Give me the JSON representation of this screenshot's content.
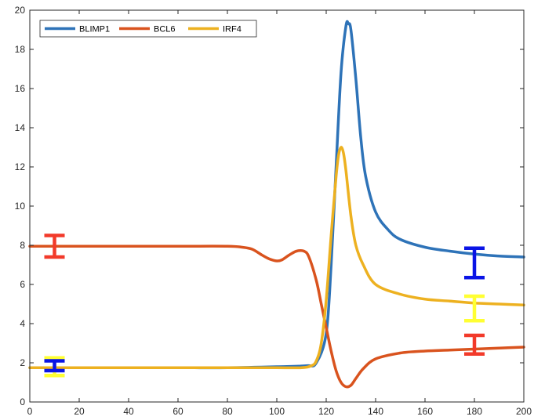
{
  "chart_data": {
    "type": "line",
    "title": "",
    "xlabel": "",
    "ylabel": "",
    "xlim": [
      0,
      200
    ],
    "ylim": [
      0,
      20
    ],
    "xticks": [
      0,
      20,
      40,
      60,
      80,
      100,
      120,
      140,
      160,
      180,
      200
    ],
    "yticks": [
      0,
      2,
      4,
      6,
      8,
      10,
      12,
      14,
      16,
      18,
      20
    ],
    "xtick_labels": [
      "0",
      "20",
      "40",
      "60",
      "80",
      "100",
      "120",
      "140",
      "160",
      "180",
      "200"
    ],
    "ytick_labels": [
      "0",
      "2",
      "4",
      "6",
      "8",
      "10",
      "12",
      "14",
      "16",
      "18",
      "20"
    ],
    "grid": false,
    "legend_position": "top-left",
    "series": [
      {
        "name": "BLIMP1",
        "color": "#2e73b8",
        "x": [
          0,
          20,
          40,
          60,
          80,
          100,
          112,
          116,
          120,
          122,
          124,
          126,
          128,
          129,
          130,
          132,
          134,
          136,
          140,
          145,
          150,
          160,
          170,
          180,
          190,
          200
        ],
        "y": [
          1.75,
          1.75,
          1.75,
          1.75,
          1.75,
          1.8,
          1.85,
          2.0,
          3.5,
          7.0,
          12.0,
          16.8,
          19.2,
          19.3,
          19.0,
          16.5,
          13.5,
          11.5,
          9.7,
          8.8,
          8.3,
          7.9,
          7.7,
          7.55,
          7.45,
          7.4
        ]
      },
      {
        "name": "BCL6",
        "color": "#d9531e",
        "x": [
          0,
          20,
          40,
          60,
          80,
          86,
          90,
          94,
          97,
          100,
          102,
          105,
          108,
          111,
          113,
          116,
          118,
          120,
          122,
          124,
          126,
          128,
          130,
          132,
          135,
          140,
          150,
          160,
          170,
          180,
          190,
          200
        ],
        "y": [
          7.95,
          7.95,
          7.95,
          7.95,
          7.95,
          7.9,
          7.8,
          7.5,
          7.3,
          7.2,
          7.25,
          7.5,
          7.7,
          7.7,
          7.4,
          6.2,
          5.0,
          3.8,
          2.6,
          1.6,
          1.0,
          0.78,
          0.85,
          1.2,
          1.7,
          2.2,
          2.5,
          2.6,
          2.65,
          2.7,
          2.75,
          2.8
        ]
      },
      {
        "name": "IRF4",
        "color": "#edb120",
        "x": [
          0,
          20,
          40,
          60,
          80,
          100,
          110,
          114,
          116,
          118,
          120,
          122,
          124,
          125,
          126,
          127,
          128,
          130,
          132,
          135,
          140,
          150,
          160,
          170,
          180,
          190,
          200
        ],
        "y": [
          1.75,
          1.75,
          1.75,
          1.75,
          1.75,
          1.75,
          1.75,
          1.85,
          2.1,
          3.0,
          5.2,
          8.5,
          11.5,
          12.6,
          13.0,
          12.7,
          11.8,
          9.5,
          8.0,
          7.0,
          6.0,
          5.5,
          5.25,
          5.15,
          5.05,
          5.0,
          4.95
        ]
      }
    ],
    "error_bars": [
      {
        "x": 10,
        "y": 7.9,
        "low": 7.4,
        "high": 8.5,
        "color": "#f23a2a"
      },
      {
        "x": 10,
        "y": 1.8,
        "low": 1.35,
        "high": 2.25,
        "color": "#ffff33"
      },
      {
        "x": 10,
        "y": 1.85,
        "low": 1.6,
        "high": 2.1,
        "color": "#0a14e6"
      },
      {
        "x": 180,
        "y": 7.1,
        "low": 6.35,
        "high": 7.85,
        "color": "#0a14e6"
      },
      {
        "x": 180,
        "y": 4.75,
        "low": 4.15,
        "high": 5.4,
        "color": "#ffff33"
      },
      {
        "x": 180,
        "y": 2.95,
        "low": 2.45,
        "high": 3.4,
        "color": "#f23a2a"
      }
    ]
  }
}
